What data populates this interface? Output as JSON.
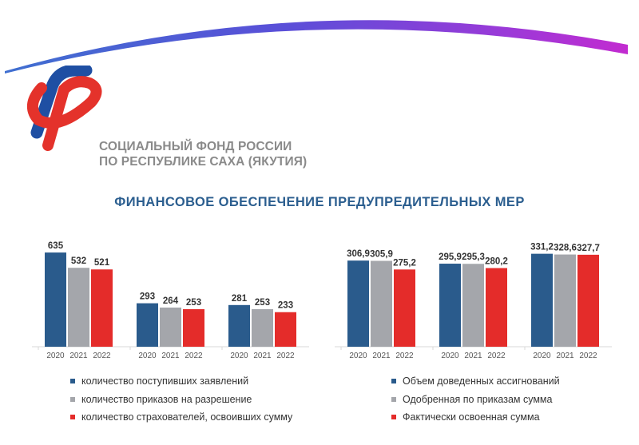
{
  "header": {
    "org_line1": "СОЦИАЛЬНЫЙ ФОНД РОССИИ",
    "org_line2": "ПО РЕСПУБЛИКЕ САХА (ЯКУТИЯ)",
    "logo_icon": "sfr-logo-icon",
    "decor": "color-arc-decoration"
  },
  "title": "ФИНАНСОВОЕ ОБЕСПЕЧЕНИЕ ПРЕДУПРЕДИТЕЛЬНЫХ МЕР",
  "colors": {
    "blue": "#2a5b8c",
    "gray": "#a4a6ab",
    "red": "#e42c2a",
    "title": "#2b5e8f"
  },
  "chart_data": [
    {
      "type": "bar",
      "x": [
        "2020",
        "2021",
        "2022"
      ],
      "series": [
        {
          "name": "количество поступивших заявлений",
          "color": "#2a5b8c",
          "values": [
            635,
            532,
            521
          ]
        },
        {
          "name": "количество приказов на разрешение",
          "color": "#a4a6ab",
          "values": [
            293,
            264,
            253
          ]
        },
        {
          "name": "количество страхователей, освоивших сумму",
          "color": "#e42c2a",
          "values": [
            281,
            253,
            233
          ]
        }
      ],
      "labels": [
        [
          "635",
          "532",
          "521"
        ],
        [
          "293",
          "264",
          "253"
        ],
        [
          "281",
          "253",
          "233"
        ]
      ],
      "ylim": [
        0,
        700
      ],
      "grid": false,
      "legend_position": "bottom"
    },
    {
      "type": "bar",
      "x": [
        "2020",
        "2021",
        "2022"
      ],
      "series": [
        {
          "name": "Объем доведенных ассигнований",
          "color": "#2a5b8c",
          "values": [
            306.9,
            305.9,
            275.2
          ]
        },
        {
          "name": "Одобренная по приказам сумма",
          "color": "#a4a6ab",
          "values": [
            295.9,
            295.3,
            280.2
          ]
        },
        {
          "name": "Фактически освоенная сумма",
          "color": "#e42c2a",
          "values": [
            331.2,
            328.6,
            327.7
          ]
        }
      ],
      "labels": [
        [
          "306,9",
          "305,9",
          "275,2"
        ],
        [
          "295,9",
          "295,3",
          "280,2"
        ],
        [
          "331,2",
          "328,6",
          "327,7"
        ]
      ],
      "ylim": [
        0,
        370
      ],
      "grid": false,
      "legend_position": "bottom"
    }
  ]
}
